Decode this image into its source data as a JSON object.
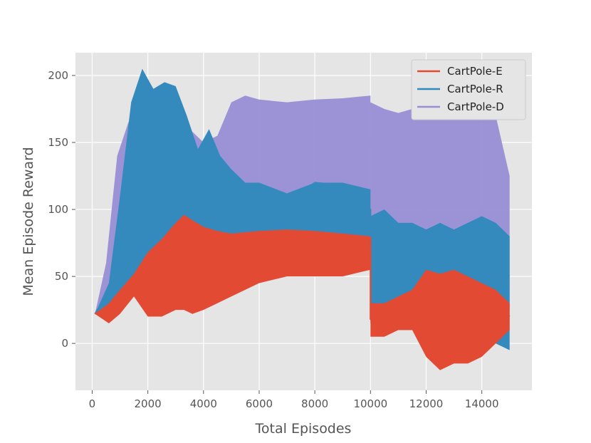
{
  "chart_data": {
    "type": "area",
    "title": "",
    "xlabel": "Total Episodes",
    "ylabel": "Mean Episode Reward",
    "xlim": [
      -600,
      15800
    ],
    "ylim": [
      -35,
      217
    ],
    "xticks": [
      0,
      2000,
      4000,
      6000,
      8000,
      10000,
      12000,
      14000
    ],
    "yticks": [
      0,
      50,
      100,
      150,
      200
    ],
    "xtick_labels": [
      "0",
      "2000",
      "4000",
      "6000",
      "8000",
      "10000",
      "12000",
      "14000"
    ],
    "ytick_labels": [
      "0",
      "50",
      "100",
      "150",
      "200"
    ],
    "grid": true,
    "legend_position": "top-right",
    "background": "#e5e5e5",
    "series": [
      {
        "name": "CartPole-E",
        "color": "#e24a33",
        "x": [
          100,
          600,
          1000,
          1500,
          2000,
          2500,
          3000,
          3300,
          3600,
          4000,
          4500,
          5000,
          6000,
          7000,
          8000,
          9000,
          10000,
          10001,
          10500,
          11000,
          11500,
          12000,
          12500,
          13000,
          13500,
          14000,
          14500,
          15000
        ],
        "mean": [
          22,
          28,
          35,
          50,
          67,
          75,
          88,
          95,
          90,
          80,
          80,
          80,
          82,
          82,
          82,
          80,
          79,
          18,
          18,
          20,
          22,
          30,
          40,
          45,
          35,
          32,
          30,
          20
        ],
        "upper": [
          22,
          30,
          40,
          52,
          68,
          78,
          90,
          96,
          92,
          87,
          84,
          82,
          84,
          85,
          84,
          82,
          80,
          30,
          30,
          35,
          40,
          55,
          52,
          55,
          50,
          45,
          40,
          30
        ],
        "lower": [
          22,
          15,
          22,
          35,
          20,
          20,
          25,
          25,
          22,
          25,
          30,
          35,
          45,
          50,
          50,
          50,
          55,
          5,
          5,
          10,
          10,
          -10,
          -20,
          -15,
          -15,
          -10,
          0,
          10
        ]
      },
      {
        "name": "CartPole-R",
        "color": "#348abd",
        "x": [
          100,
          600,
          1000,
          1400,
          1800,
          2200,
          2600,
          3000,
          3400,
          3800,
          4200,
          4600,
          5000,
          5500,
          6000,
          7000,
          8000,
          9000,
          10000,
          10001,
          10500,
          11000,
          11500,
          12000,
          12500,
          13000,
          13500,
          14000,
          14500,
          15000
        ],
        "mean": [
          22,
          40,
          75,
          115,
          135,
          135,
          128,
          140,
          125,
          110,
          95,
          115,
          105,
          115,
          118,
          105,
          120,
          118,
          100,
          70,
          75,
          60,
          55,
          65,
          70,
          60,
          60,
          55,
          55,
          50
        ],
        "upper": [
          22,
          45,
          110,
          180,
          205,
          190,
          195,
          192,
          170,
          145,
          160,
          140,
          130,
          120,
          120,
          112,
          120,
          120,
          115,
          95,
          100,
          90,
          90,
          85,
          90,
          85,
          90,
          95,
          90,
          80
        ],
        "lower": [
          22,
          25,
          35,
          40,
          45,
          40,
          40,
          40,
          45,
          45,
          40,
          50,
          60,
          65,
          65,
          70,
          80,
          78,
          78,
          15,
          15,
          10,
          10,
          15,
          10,
          10,
          0,
          0,
          0,
          -5
        ]
      },
      {
        "name": "CartPole-D",
        "color": "#988ed5",
        "x": [
          100,
          500,
          900,
          1300,
          1700,
          2100,
          2500,
          3000,
          3500,
          4000,
          4500,
          5000,
          5500,
          6000,
          7000,
          8000,
          9000,
          10000,
          10001,
          10500,
          11000,
          11500,
          12000,
          12500,
          13000,
          13500,
          14000,
          14500,
          15000
        ],
        "upper": [
          22,
          60,
          140,
          165,
          178,
          180,
          180,
          170,
          160,
          150,
          155,
          180,
          185,
          182,
          180,
          182,
          183,
          185,
          180,
          175,
          172,
          175,
          175,
          172,
          175,
          170,
          172,
          170,
          125
        ],
        "lower": [
          22,
          30,
          40,
          45,
          50,
          55,
          55,
          58,
          58,
          60,
          60,
          62,
          65,
          68,
          70,
          70,
          72,
          75,
          20,
          20,
          22,
          22,
          25,
          25,
          25,
          25,
          25,
          25,
          25
        ]
      }
    ]
  }
}
